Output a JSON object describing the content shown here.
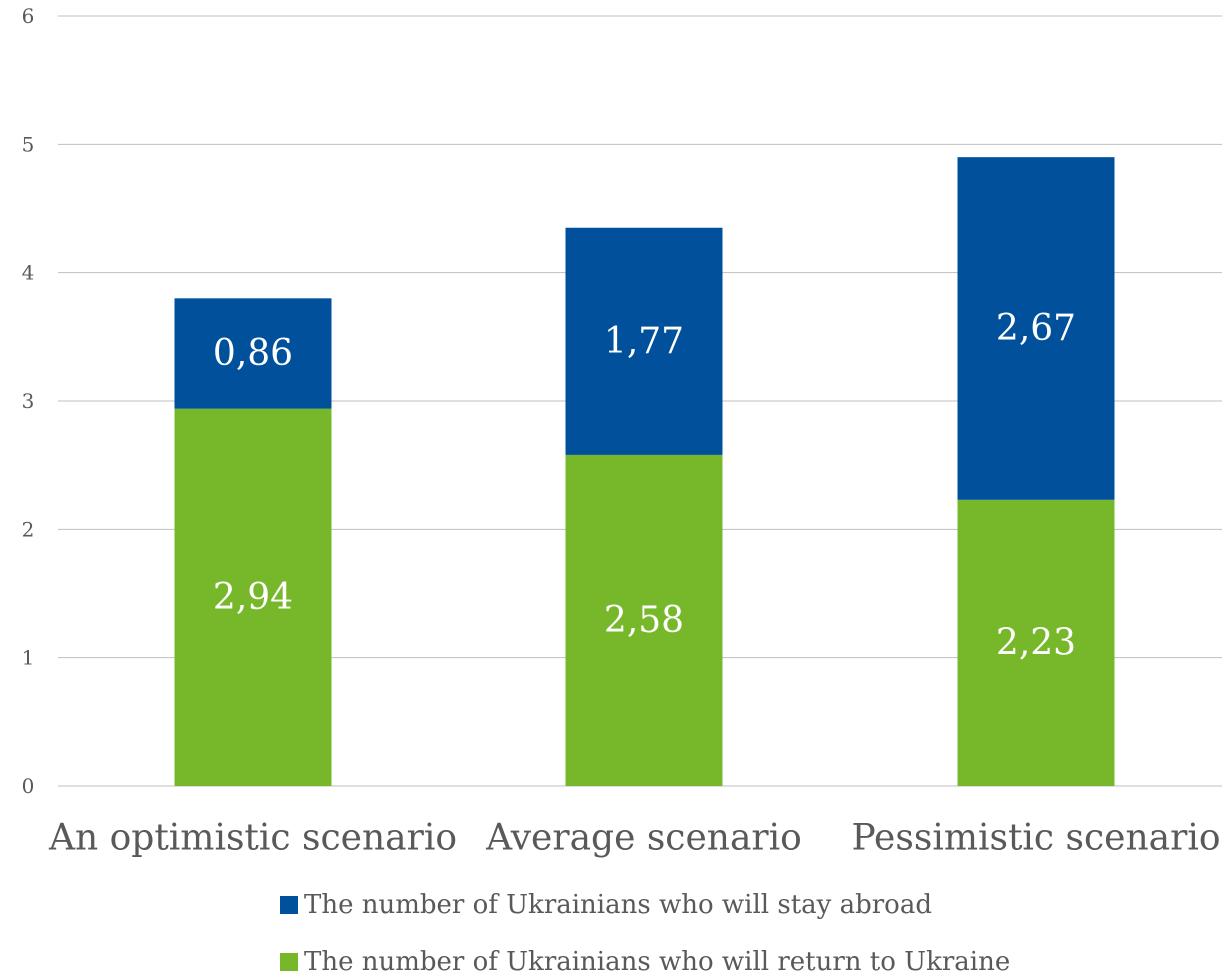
{
  "chart_data": {
    "type": "bar",
    "stacked": true,
    "categories": [
      "An optimistic scenario",
      "Average scenario",
      "Pessimistic scenario"
    ],
    "series": [
      {
        "name": "The number of Ukrainians who will return to Ukraine",
        "color": "#76b82a",
        "values": [
          2.94,
          2.58,
          2.23
        ],
        "labels": [
          "2,94",
          "2,58",
          "2,23"
        ]
      },
      {
        "name": "The number of Ukrainians who will stay abroad",
        "color": "#00509b",
        "values": [
          0.86,
          1.77,
          2.67
        ],
        "labels": [
          "0,86",
          "1,77",
          "2,67"
        ]
      }
    ],
    "ylim": [
      0,
      6
    ],
    "yticks": [
      "0",
      "1",
      "2",
      "3",
      "4",
      "5",
      "6"
    ],
    "grid": true,
    "legend_position": "bottom",
    "legend_order": [
      1,
      0
    ],
    "title": "",
    "xlabel": "",
    "ylabel": ""
  }
}
